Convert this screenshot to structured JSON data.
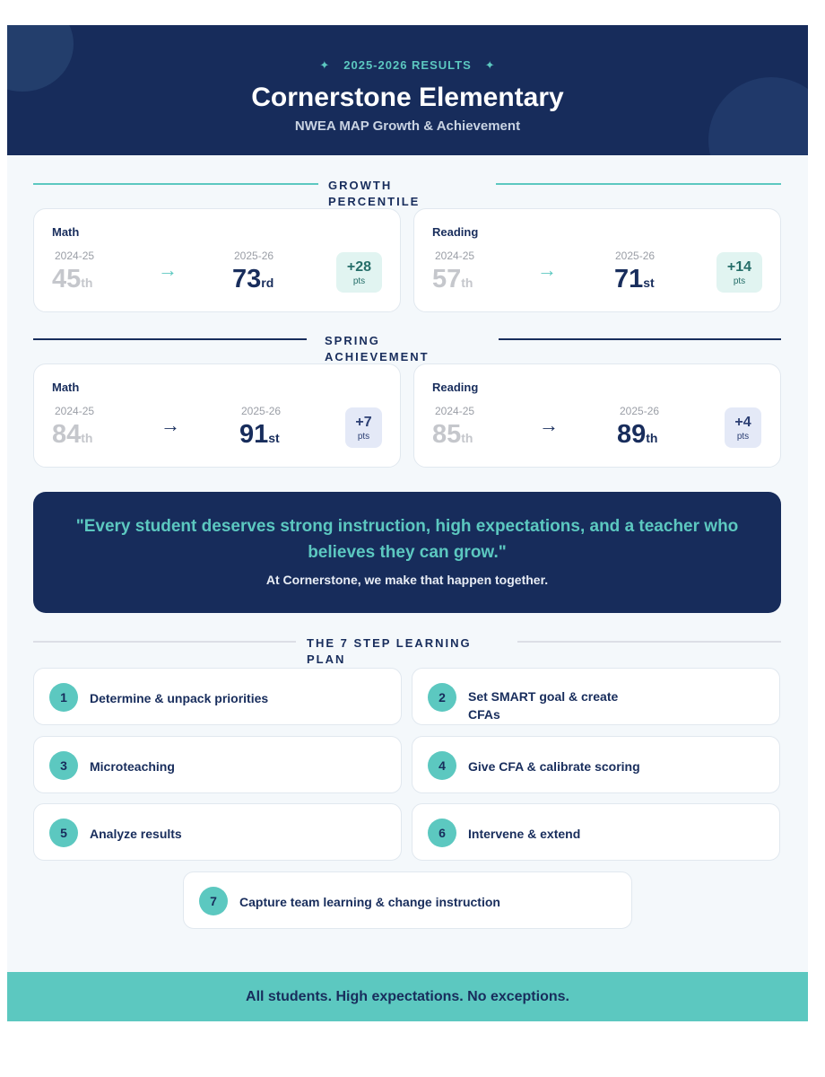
{
  "header": {
    "eyebrow": "2025-2026 RESULTS",
    "sparkle_icon": "✦",
    "school_name": "Cornerstone Elementary",
    "subtitle": "NWEA MAP Growth & Achievement"
  },
  "growth": {
    "heading_line1": "GROWTH",
    "heading_line2": "PERCENTILE",
    "cards": [
      {
        "subject": "Math",
        "prev_year": "2024-25",
        "prev_value": "45",
        "prev_suffix": "th",
        "arrow": "→",
        "curr_year": "2025-26",
        "curr_value": "73",
        "curr_suffix": "rd",
        "delta": "+28",
        "delta_unit": "pts"
      },
      {
        "subject": "Reading",
        "prev_year": "2024-25",
        "prev_value": "57",
        "prev_suffix": "th",
        "arrow": "→",
        "curr_year": "2025-26",
        "curr_value": "71",
        "curr_suffix": "st",
        "delta": "+14",
        "delta_unit": "pts"
      }
    ]
  },
  "achievement": {
    "heading_line1": "SPRING",
    "heading_line2": "ACHIEVEMENT",
    "cards": [
      {
        "subject": "Math",
        "prev_year": "2024-25",
        "prev_value": "84",
        "prev_suffix": "th",
        "arrow": "→",
        "curr_year": "2025-26",
        "curr_value": "91",
        "curr_suffix": "st",
        "delta": "+7",
        "delta_unit": "pts"
      },
      {
        "subject": "Reading",
        "prev_year": "2024-25",
        "prev_value": "85",
        "prev_suffix": "th",
        "arrow": "→",
        "curr_year": "2025-26",
        "curr_value": "89",
        "curr_suffix": "th",
        "delta": "+4",
        "delta_unit": "pts"
      }
    ]
  },
  "quote": {
    "text": "\"Every student deserves strong instruction, high expectations, and a teacher who believes they can grow.\"",
    "subtext": "At Cornerstone, we make that happen together."
  },
  "plan": {
    "heading_line1": "THE 7 STEP LEARNING",
    "heading_line2": "PLAN",
    "steps": [
      {
        "number": "1",
        "label": "Determine & unpack priorities"
      },
      {
        "number": "2",
        "label": "Set SMART goal & create CFAs"
      },
      {
        "number": "3",
        "label": "Microteaching"
      },
      {
        "number": "4",
        "label": "Give CFA & calibrate scoring"
      },
      {
        "number": "5",
        "label": "Analyze results"
      },
      {
        "number": "6",
        "label": "Intervene & extend"
      },
      {
        "number": "7",
        "label": "Capture team learning & change instruction"
      }
    ]
  },
  "footer": {
    "text": "All students. High expectations. No exceptions."
  },
  "colors": {
    "navy": "#172c5b",
    "teal": "#5cc8c0",
    "background": "#f4f8fb"
  }
}
